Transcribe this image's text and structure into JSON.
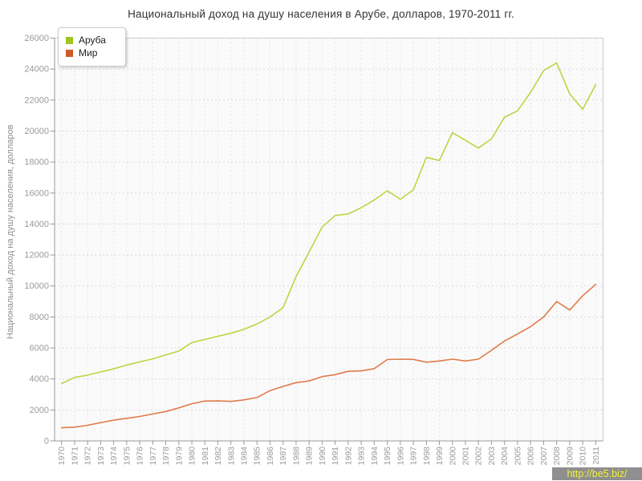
{
  "title": "Национальный доход на душу населения в Арубе, долларов, 1970-2011 гг.",
  "watermark": {
    "text": "http://be5.biz/"
  },
  "colors": {
    "aruba_line": "#bcd543",
    "aruba_swatch": "#a0c71e",
    "mir_line": "#e07b4a",
    "mir_swatch": "#cd5a28",
    "grid_horizontal": "#d9d9d9",
    "grid_vertical": "#e3e3e3",
    "axis": "#999999",
    "plot_border": "#cccccc",
    "plot_background": "#fafafa",
    "tick_label": "#9a9a9a",
    "title_text": "#333333",
    "watermark_bg": "#8f8f8f",
    "watermark_text": "#f0ef3b"
  },
  "chart_data": {
    "type": "line",
    "title": "Национальный доход на душу населения в Арубе, долларов, 1970-2011 гг.",
    "xlabel": "",
    "ylabel": "Национальный доход на душу населения, долларов",
    "ylim": [
      0,
      26000
    ],
    "ytick_step": 2000,
    "grid": true,
    "legend_position": "top-left",
    "x": [
      1970,
      1971,
      1972,
      1973,
      1974,
      1975,
      1976,
      1977,
      1978,
      1979,
      1980,
      1981,
      1982,
      1983,
      1984,
      1985,
      1986,
      1987,
      1988,
      1989,
      1990,
      1991,
      1992,
      1993,
      1994,
      1995,
      1996,
      1997,
      1998,
      1999,
      2000,
      2001,
      2002,
      2003,
      2004,
      2005,
      2006,
      2007,
      2008,
      2009,
      2010,
      2011
    ],
    "series": [
      {
        "name": "Аруба",
        "line_color": "#bcd543",
        "swatch_color": "#a0c71e",
        "values": [
          3700,
          4100,
          4250,
          4450,
          4650,
          4900,
          5100,
          5300,
          5550,
          5800,
          6350,
          6550,
          6750,
          6950,
          7200,
          7550,
          8000,
          8600,
          10600,
          12200,
          13800,
          14550,
          14650,
          15050,
          15550,
          16150,
          15600,
          16200,
          18300,
          18100,
          19900,
          19400,
          18900,
          19500,
          20900,
          21300,
          22500,
          23900,
          24400,
          22400,
          21400,
          23000
        ]
      },
      {
        "name": "Мир",
        "line_color": "#e07b4a",
        "swatch_color": "#cd5a28",
        "values": [
          850,
          890,
          1010,
          1180,
          1340,
          1460,
          1580,
          1740,
          1900,
          2130,
          2400,
          2570,
          2580,
          2550,
          2650,
          2800,
          3250,
          3520,
          3760,
          3870,
          4150,
          4280,
          4490,
          4520,
          4660,
          5250,
          5280,
          5260,
          5080,
          5160,
          5280,
          5160,
          5280,
          5850,
          6450,
          6900,
          7380,
          8000,
          9000,
          8450,
          9370,
          10100
        ]
      }
    ]
  }
}
